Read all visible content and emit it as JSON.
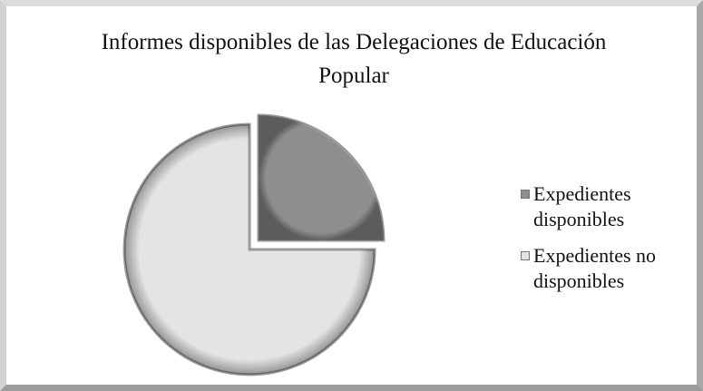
{
  "chart_data": {
    "type": "pie",
    "title": "Informes disponibles de las Delegaciones de Educación Popular",
    "categories": [
      "Expedientes disponibles",
      "Expedientes no disponibles"
    ],
    "values": [
      25,
      75
    ],
    "colors": [
      "#8e8e8e",
      "#e4e4e4"
    ],
    "legend": "right"
  }
}
